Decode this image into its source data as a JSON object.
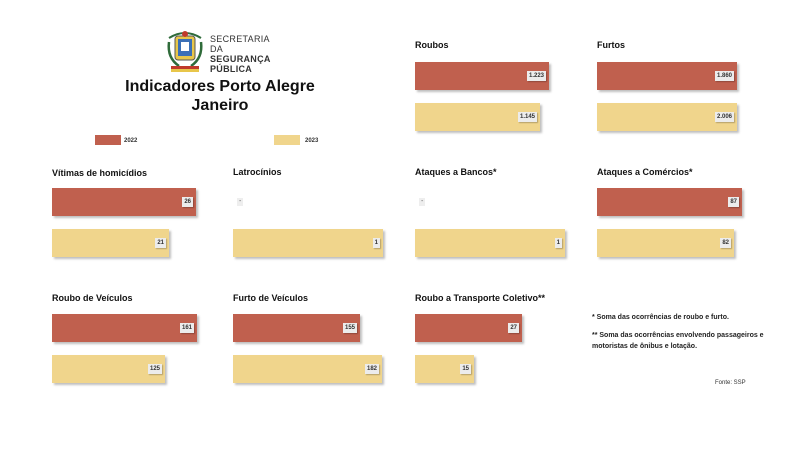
{
  "header": {
    "logo_lines": [
      "SECRETARIA DA",
      "SEGURANÇA",
      "PÚBLICA"
    ],
    "title_line1": "Indicadores Porto Alegre",
    "title_line2": "Janeiro"
  },
  "legend": [
    {
      "label": "2022",
      "color": "#c0604e"
    },
    {
      "label": "2023",
      "color": "#f0d58c"
    }
  ],
  "chart_data": [
    {
      "type": "bar",
      "title": "Roubos",
      "categories": [
        "2022",
        "2023"
      ],
      "values": [
        1223,
        1145
      ],
      "labels": [
        "1.223",
        "1.145"
      ]
    },
    {
      "type": "bar",
      "title": "Furtos",
      "categories": [
        "2022",
        "2023"
      ],
      "values": [
        1860,
        2006
      ],
      "labels": [
        "1.860",
        "2.006"
      ]
    },
    {
      "type": "bar",
      "title": "Vítimas de homicídios",
      "categories": [
        "2022",
        "2023"
      ],
      "values": [
        26,
        21
      ],
      "labels": [
        "26",
        "21"
      ]
    },
    {
      "type": "bar",
      "title": "Latrocínios",
      "categories": [
        "2022",
        "2023"
      ],
      "values": [
        null,
        1
      ],
      "labels": [
        "-",
        "1"
      ]
    },
    {
      "type": "bar",
      "title": "Ataques a Bancos*",
      "categories": [
        "2022",
        "2023"
      ],
      "values": [
        null,
        1
      ],
      "labels": [
        "-",
        "1"
      ]
    },
    {
      "type": "bar",
      "title": "Ataques a Comércios*",
      "categories": [
        "2022",
        "2023"
      ],
      "values": [
        87,
        82
      ],
      "labels": [
        "87",
        "82"
      ]
    },
    {
      "type": "bar",
      "title": "Roubo de Veículos",
      "categories": [
        "2022",
        "2023"
      ],
      "values": [
        161,
        125
      ],
      "labels": [
        "161",
        "125"
      ]
    },
    {
      "type": "bar",
      "title": "Furto de Veículos",
      "categories": [
        "2022",
        "2023"
      ],
      "values": [
        155,
        182
      ],
      "labels": [
        "155",
        "182"
      ]
    },
    {
      "type": "bar",
      "title": "Roubo a Transporte Coletivo**",
      "categories": [
        "2022",
        "2023"
      ],
      "values": [
        27,
        15
      ],
      "labels": [
        "27",
        "15"
      ]
    }
  ],
  "notes": {
    "note1": "* Soma das ocorrências de roubo e furto.",
    "note2": "** Soma das ocorrências envolvendo passageiros e motoristas de ônibus e lotação.",
    "source": "Fonte: SSP"
  }
}
